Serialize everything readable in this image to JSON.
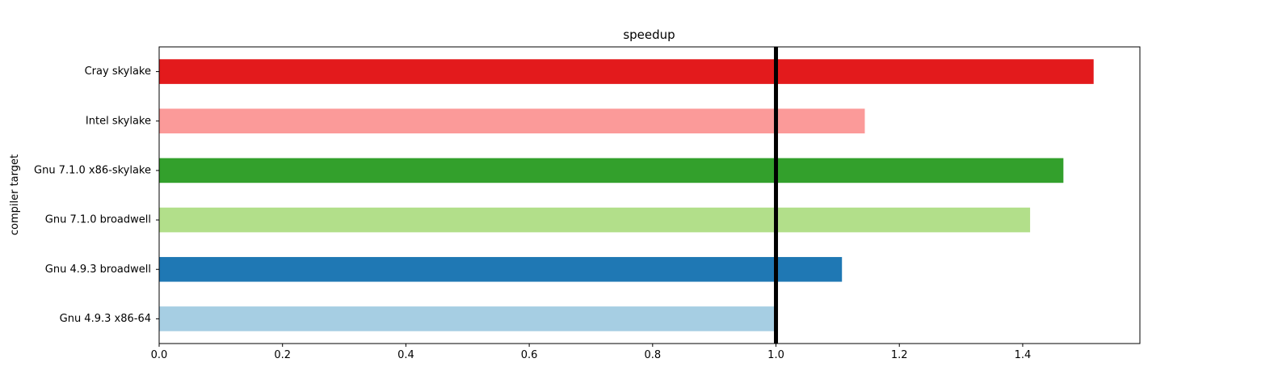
{
  "chart_data": {
    "type": "bar",
    "orientation": "horizontal",
    "title": "speedup",
    "xlabel": "",
    "ylabel": "compiler target",
    "categories": [
      "Gnu 4.9.3 x86-64",
      "Gnu 4.9.3 broadwell",
      "Gnu 7.1.0 broadwell",
      "Gnu 7.1.0 x86-skylake",
      "Intel skylake",
      "Cray skylake"
    ],
    "values": [
      1.0,
      1.107,
      1.412,
      1.466,
      1.144,
      1.515
    ],
    "colors": [
      "#a6cee3",
      "#1f78b4",
      "#b2df8a",
      "#33a02c",
      "#fb9a99",
      "#e31a1c"
    ],
    "xlim": [
      0,
      1.59
    ],
    "xticks": [
      "0.0",
      "0.2",
      "0.4",
      "0.6",
      "0.8",
      "1.0",
      "1.2",
      "1.4"
    ],
    "reference_line": {
      "x": 1.0,
      "color": "#000000"
    },
    "grid": false,
    "legend": "none"
  }
}
